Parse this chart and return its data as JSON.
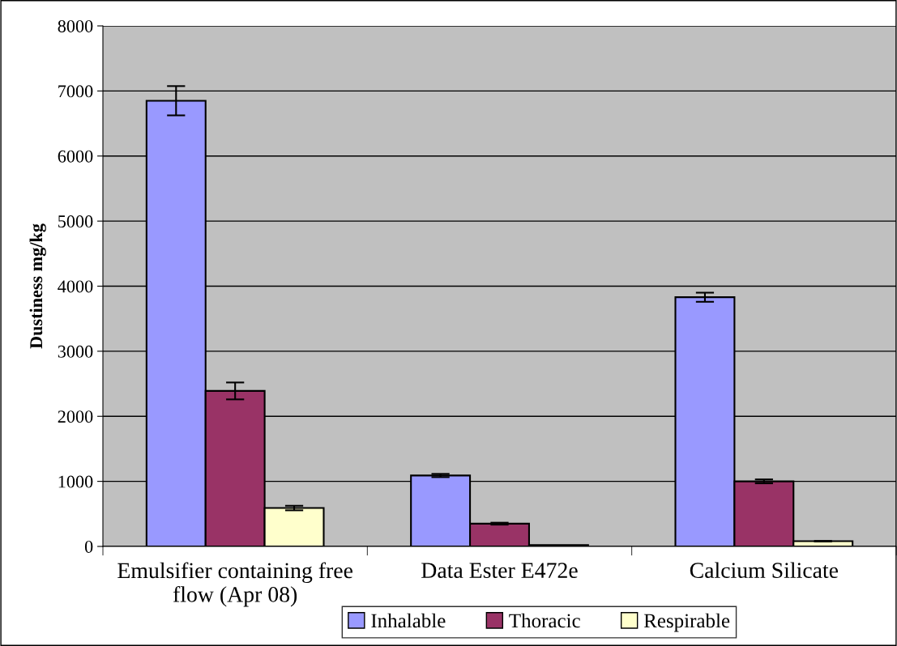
{
  "chart_data": {
    "type": "bar",
    "ylabel": "Dustiness mg/kg",
    "categories": [
      "Emulsifier containing free flow (Apr 08)",
      "Data Ester E472e",
      "Calcium Silicate"
    ],
    "series": [
      {
        "name": "Inhalable",
        "color": "#9999ff",
        "values": [
          6850,
          1090,
          3830
        ],
        "errors": [
          225,
          25,
          70
        ]
      },
      {
        "name": "Thoracic",
        "color": "#993366",
        "values": [
          2390,
          350,
          1000
        ],
        "errors": [
          130,
          15,
          30
        ]
      },
      {
        "name": "Respirable",
        "color": "#ffffcc",
        "values": [
          590,
          20,
          80
        ],
        "errors": [
          35,
          null,
          5
        ]
      }
    ],
    "ylim": [
      0,
      8000
    ],
    "yticks": [
      0,
      1000,
      2000,
      3000,
      4000,
      5000,
      6000,
      7000,
      8000
    ],
    "grid": "y",
    "legend": "bottom"
  }
}
